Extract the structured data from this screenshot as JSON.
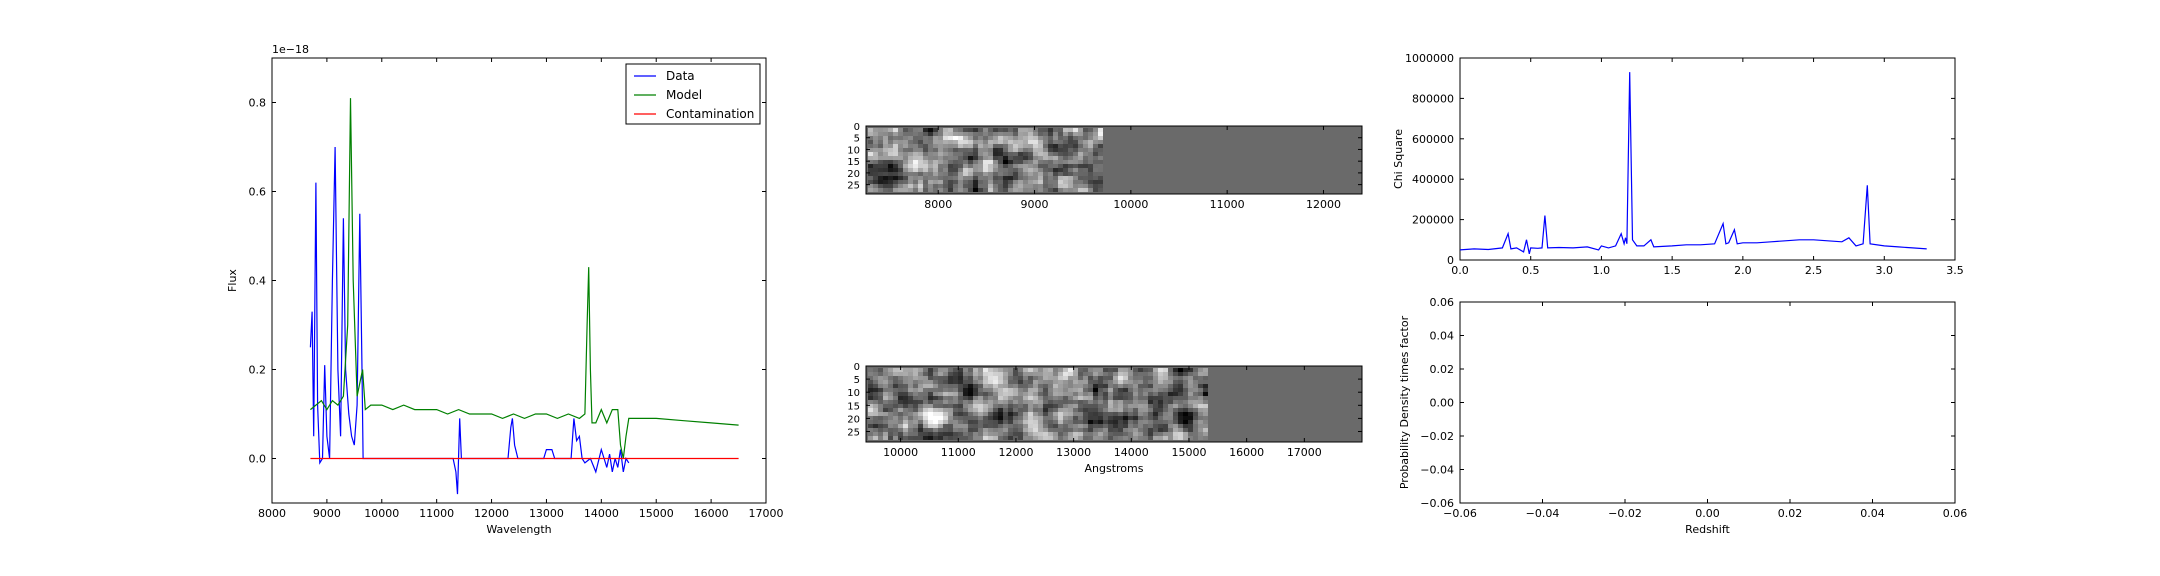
{
  "chart_data": [
    {
      "type": "line",
      "xlabel": "Wavelength",
      "ylabel": "Flux",
      "offset_label": "1e−18",
      "xlim": [
        8000,
        17000
      ],
      "ylim": [
        -0.1,
        0.9
      ],
      "xticks": [
        8000,
        9000,
        10000,
        11000,
        12000,
        13000,
        14000,
        15000,
        16000,
        17000
      ],
      "yticks": [
        0.0,
        0.2,
        0.4,
        0.6,
        0.8
      ],
      "ytick_labels": [
        "0.0",
        "0.2",
        "0.4",
        "0.6",
        "0.8"
      ],
      "legend_placement": "top-right",
      "grid": false,
      "series": [
        {
          "name": "Data",
          "color": "#0000ff",
          "points": [
            [
              8700,
              0.25
            ],
            [
              8730,
              0.33
            ],
            [
              8760,
              0.05
            ],
            [
              8800,
              0.62
            ],
            [
              8830,
              0.12
            ],
            [
              8870,
              -0.01
            ],
            [
              8920,
              0.0
            ],
            [
              8960,
              0.21
            ],
            [
              9000,
              0.05
            ],
            [
              9050,
              0.0
            ],
            [
              9100,
              0.4
            ],
            [
              9150,
              0.7
            ],
            [
              9200,
              0.2
            ],
            [
              9250,
              0.05
            ],
            [
              9300,
              0.54
            ],
            [
              9340,
              0.2
            ],
            [
              9400,
              0.1
            ],
            [
              9450,
              0.05
            ],
            [
              9500,
              0.03
            ],
            [
              9550,
              0.12
            ],
            [
              9600,
              0.55
            ],
            [
              9640,
              0.2
            ],
            [
              9660,
              0.0
            ],
            [
              11300,
              0.0
            ],
            [
              11350,
              -0.03
            ],
            [
              11380,
              -0.08
            ],
            [
              11420,
              0.09
            ],
            [
              11450,
              0.0
            ],
            [
              12300,
              0.0
            ],
            [
              12350,
              0.07
            ],
            [
              12380,
              0.09
            ],
            [
              12420,
              0.03
            ],
            [
              12480,
              0.0
            ],
            [
              12950,
              0.0
            ],
            [
              13000,
              0.02
            ],
            [
              13100,
              0.02
            ],
            [
              13150,
              0.0
            ],
            [
              13450,
              0.0
            ],
            [
              13500,
              0.09
            ],
            [
              13550,
              0.04
            ],
            [
              13600,
              0.05
            ],
            [
              13650,
              0.0
            ],
            [
              13700,
              -0.01
            ],
            [
              13800,
              0.0
            ],
            [
              13900,
              -0.03
            ],
            [
              14000,
              0.02
            ],
            [
              14050,
              0.0
            ],
            [
              14100,
              -0.02
            ],
            [
              14150,
              0.01
            ],
            [
              14200,
              -0.03
            ],
            [
              14250,
              0.0
            ],
            [
              14300,
              -0.02
            ],
            [
              14350,
              0.02
            ],
            [
              14400,
              -0.03
            ],
            [
              14450,
              0.0
            ],
            [
              14500,
              -0.01
            ]
          ]
        },
        {
          "name": "Model",
          "color": "#008000",
          "points": [
            [
              8700,
              0.11
            ],
            [
              8800,
              0.12
            ],
            [
              8900,
              0.13
            ],
            [
              9000,
              0.11
            ],
            [
              9100,
              0.13
            ],
            [
              9200,
              0.12
            ],
            [
              9300,
              0.14
            ],
            [
              9380,
              0.3
            ],
            [
              9430,
              0.81
            ],
            [
              9480,
              0.4
            ],
            [
              9550,
              0.14
            ],
            [
              9650,
              0.2
            ],
            [
              9700,
              0.11
            ],
            [
              9800,
              0.12
            ],
            [
              10000,
              0.12
            ],
            [
              10200,
              0.11
            ],
            [
              10400,
              0.12
            ],
            [
              10600,
              0.11
            ],
            [
              10800,
              0.11
            ],
            [
              11000,
              0.11
            ],
            [
              11200,
              0.1
            ],
            [
              11400,
              0.11
            ],
            [
              11600,
              0.1
            ],
            [
              11800,
              0.1
            ],
            [
              12000,
              0.1
            ],
            [
              12200,
              0.09
            ],
            [
              12400,
              0.1
            ],
            [
              12600,
              0.09
            ],
            [
              12800,
              0.1
            ],
            [
              13000,
              0.1
            ],
            [
              13200,
              0.09
            ],
            [
              13400,
              0.1
            ],
            [
              13600,
              0.09
            ],
            [
              13700,
              0.1
            ],
            [
              13740,
              0.3
            ],
            [
              13770,
              0.43
            ],
            [
              13800,
              0.2
            ],
            [
              13830,
              0.08
            ],
            [
              13900,
              0.08
            ],
            [
              14000,
              0.11
            ],
            [
              14100,
              0.08
            ],
            [
              14200,
              0.11
            ],
            [
              14300,
              0.11
            ],
            [
              14350,
              0.03
            ],
            [
              14400,
              0.0
            ],
            [
              14450,
              0.05
            ],
            [
              14500,
              0.09
            ],
            [
              15000,
              0.09
            ],
            [
              15500,
              0.085
            ],
            [
              16000,
              0.08
            ],
            [
              16500,
              0.075
            ]
          ]
        },
        {
          "name": "Contamination",
          "color": "#ff0000",
          "points": [
            [
              8700,
              0.0
            ],
            [
              16500,
              0.0
            ]
          ]
        }
      ]
    },
    {
      "type": "heatmap",
      "xlim": [
        7250,
        12400
      ],
      "ylim": [
        29,
        0
      ],
      "xticks": [
        8000,
        9000,
        10000,
        11000,
        12000
      ],
      "yticks": [
        0,
        5,
        10,
        15,
        20,
        25
      ],
      "data_xmax": 9700
    },
    {
      "type": "heatmap",
      "xlabel": "Angstroms",
      "xlim": [
        9400,
        18000
      ],
      "ylim": [
        29,
        0
      ],
      "xticks": [
        10000,
        11000,
        12000,
        13000,
        14000,
        15000,
        16000,
        17000
      ],
      "yticks": [
        0,
        5,
        10,
        15,
        20,
        25
      ],
      "data_xmax": 15350
    },
    {
      "type": "line",
      "ylabel": "Chi Square",
      "xlim": [
        0.0,
        3.5
      ],
      "ylim": [
        0,
        1000000
      ],
      "xticks": [
        0.0,
        0.5,
        1.0,
        1.5,
        2.0,
        2.5,
        3.0,
        3.5
      ],
      "xtick_labels": [
        "0.0",
        "0.5",
        "1.0",
        "1.5",
        "2.0",
        "2.5",
        "3.0",
        "3.5"
      ],
      "yticks": [
        0,
        200000,
        400000,
        600000,
        800000,
        1000000
      ],
      "series": [
        {
          "color": "#0000ff",
          "points": [
            [
              0.0,
              50000
            ],
            [
              0.1,
              55000
            ],
            [
              0.2,
              52000
            ],
            [
              0.3,
              60000
            ],
            [
              0.34,
              130000
            ],
            [
              0.36,
              55000
            ],
            [
              0.4,
              60000
            ],
            [
              0.45,
              40000
            ],
            [
              0.47,
              100000
            ],
            [
              0.49,
              30000
            ],
            [
              0.5,
              60000
            ],
            [
              0.55,
              58000
            ],
            [
              0.58,
              60000
            ],
            [
              0.6,
              220000
            ],
            [
              0.62,
              60000
            ],
            [
              0.7,
              62000
            ],
            [
              0.8,
              60000
            ],
            [
              0.9,
              65000
            ],
            [
              0.98,
              50000
            ],
            [
              1.0,
              70000
            ],
            [
              1.05,
              60000
            ],
            [
              1.1,
              70000
            ],
            [
              1.14,
              130000
            ],
            [
              1.16,
              80000
            ],
            [
              1.17,
              110000
            ],
            [
              1.18,
              80000
            ],
            [
              1.2,
              930000
            ],
            [
              1.22,
              100000
            ],
            [
              1.25,
              70000
            ],
            [
              1.3,
              70000
            ],
            [
              1.35,
              100000
            ],
            [
              1.37,
              65000
            ],
            [
              1.5,
              70000
            ],
            [
              1.6,
              75000
            ],
            [
              1.7,
              75000
            ],
            [
              1.8,
              80000
            ],
            [
              1.86,
              180000
            ],
            [
              1.88,
              80000
            ],
            [
              1.9,
              85000
            ],
            [
              1.94,
              150000
            ],
            [
              1.96,
              80000
            ],
            [
              2.0,
              85000
            ],
            [
              2.1,
              85000
            ],
            [
              2.2,
              90000
            ],
            [
              2.3,
              95000
            ],
            [
              2.4,
              100000
            ],
            [
              2.5,
              100000
            ],
            [
              2.6,
              95000
            ],
            [
              2.7,
              90000
            ],
            [
              2.75,
              110000
            ],
            [
              2.8,
              70000
            ],
            [
              2.85,
              80000
            ],
            [
              2.88,
              370000
            ],
            [
              2.9,
              80000
            ],
            [
              3.0,
              70000
            ],
            [
              3.1,
              65000
            ],
            [
              3.2,
              60000
            ],
            [
              3.3,
              55000
            ]
          ]
        }
      ]
    },
    {
      "type": "line",
      "xlabel": "Redshift",
      "ylabel": "Probability Density times factor",
      "xlim": [
        -0.06,
        0.06
      ],
      "ylim": [
        -0.06,
        0.06
      ],
      "xticks": [
        -0.06,
        -0.04,
        -0.02,
        0.0,
        0.02,
        0.04,
        0.06
      ],
      "xtick_labels": [
        "−0.06",
        "−0.04",
        "−0.02",
        "0.00",
        "0.02",
        "0.04",
        "0.06"
      ],
      "yticks": [
        -0.06,
        -0.04,
        -0.02,
        0.0,
        0.02,
        0.04,
        0.06
      ],
      "ytick_labels": [
        "−0.06",
        "−0.04",
        "−0.02",
        "0.00",
        "0.02",
        "0.04",
        "0.06"
      ],
      "series": []
    }
  ]
}
